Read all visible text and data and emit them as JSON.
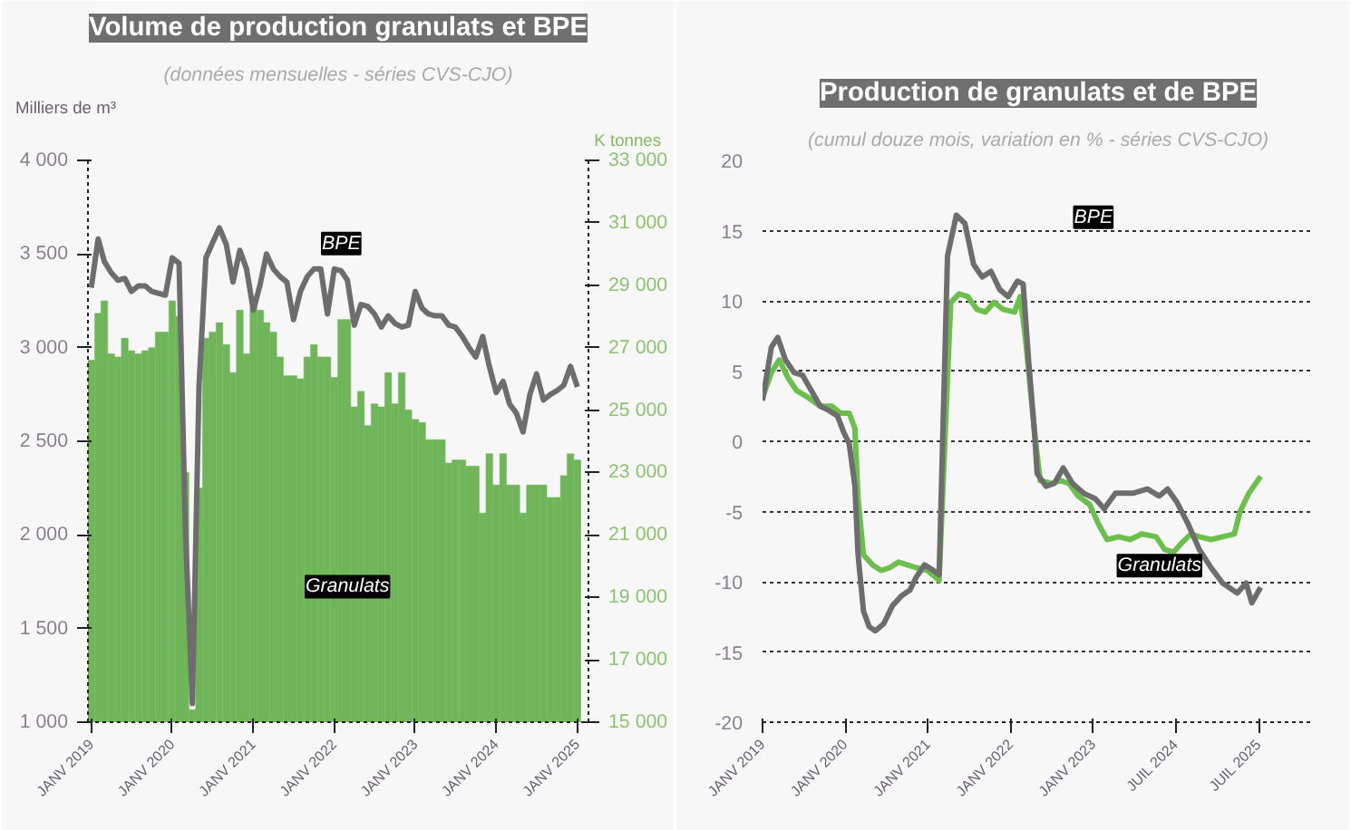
{
  "chart_data": [
    {
      "type": "bar",
      "title": "Volume de production granulats et BPE",
      "subtitle": "(données mensuelles - séries CVS-CJO)",
      "ylabel": "Milliers de m³",
      "y2label": "K tonnes",
      "x": [
        "2019-01",
        "2019-02",
        "2019-03",
        "2019-04",
        "2019-05",
        "2019-06",
        "2019-07",
        "2019-08",
        "2019-09",
        "2019-10",
        "2019-11",
        "2019-12",
        "2020-01",
        "2020-02",
        "2020-03",
        "2020-04",
        "2020-05",
        "2020-06",
        "2020-07",
        "2020-08",
        "2020-09",
        "2020-10",
        "2020-11",
        "2020-12",
        "2021-01",
        "2021-02",
        "2021-03",
        "2021-04",
        "2021-05",
        "2021-06",
        "2021-07",
        "2021-08",
        "2021-09",
        "2021-10",
        "2021-11",
        "2021-12",
        "2022-01",
        "2022-02",
        "2022-03",
        "2022-04",
        "2022-05",
        "2022-06",
        "2022-07",
        "2022-08",
        "2022-09",
        "2022-10",
        "2022-11",
        "2022-12",
        "2023-01",
        "2023-02",
        "2023-03",
        "2023-04",
        "2023-05",
        "2023-06",
        "2023-07",
        "2023-08",
        "2023-09",
        "2023-10",
        "2023-11",
        "2023-12",
        "2024-01",
        "2024-02",
        "2024-03",
        "2024-04",
        "2024-05",
        "2024-06",
        "2024-07",
        "2024-08",
        "2024-09",
        "2024-10",
        "2024-11",
        "2024-12",
        "2025-01"
      ],
      "xlim": [
        "2018-12-17",
        "2025-02-20"
      ],
      "xticks": [
        {
          "value": "2019-01",
          "label": "JANV 2019"
        },
        {
          "value": "2020-01",
          "label": "JANV 2020"
        },
        {
          "value": "2021-01",
          "label": "JANV 2021"
        },
        {
          "value": "2022-01",
          "label": "JANV 2022"
        },
        {
          "value": "2023-01",
          "label": "JANV 2023"
        },
        {
          "value": "2024-01",
          "label": "JANV 2024"
        },
        {
          "value": "2025-01",
          "label": "JANV 2025"
        }
      ],
      "ylim": [
        1000,
        4000
      ],
      "yticks": [
        {
          "value": 1000,
          "label": "1 000"
        },
        {
          "value": 1500,
          "label": "1 500"
        },
        {
          "value": 2000,
          "label": "2 000"
        },
        {
          "value": 2500,
          "label": "2 500"
        },
        {
          "value": 3000,
          "label": "3 000"
        },
        {
          "value": 3500,
          "label": "3 500"
        },
        {
          "value": 4000,
          "label": "4 000"
        }
      ],
      "y2lim": [
        15000,
        33000
      ],
      "y2ticks": [
        {
          "value": 15000,
          "label": "15 000"
        },
        {
          "value": 17000,
          "label": "17 000"
        },
        {
          "value": 19000,
          "label": "19 000"
        },
        {
          "value": 21000,
          "label": "21 000"
        },
        {
          "value": 23000,
          "label": "23 000"
        },
        {
          "value": 25000,
          "label": "25 000"
        },
        {
          "value": 27000,
          "label": "27 000"
        },
        {
          "value": 29000,
          "label": "29 000"
        },
        {
          "value": 31000,
          "label": "31 000"
        },
        {
          "value": 33000,
          "label": "33 000"
        }
      ],
      "grid": false,
      "series": [
        {
          "type": "bar",
          "axis": "y2",
          "color": "#70b55a",
          "values": [
            26600,
            28100,
            28500,
            26800,
            26700,
            27300,
            26900,
            26800,
            26900,
            27000,
            27500,
            27500,
            28500,
            28000,
            23000,
            15400,
            22500,
            27300,
            27500,
            27800,
            27100,
            26200,
            28200,
            26800,
            28300,
            28200,
            27800,
            27500,
            26700,
            26100,
            26100,
            26000,
            26700,
            27100,
            26700,
            26700,
            26050,
            27900,
            27900,
            25100,
            25600,
            24500,
            25200,
            25100,
            26200,
            25200,
            26200,
            25000,
            24700,
            24600,
            24050,
            24050,
            24050,
            23300,
            23400,
            23400,
            23200,
            23200,
            21700,
            23600,
            22600,
            23600,
            22600,
            22600,
            21700,
            22600,
            22600,
            22600,
            22200,
            22200,
            22900,
            23600,
            23400
          ]
        },
        {
          "type": "line",
          "axis": "y",
          "color": "#6d6d6d",
          "values": [
            3320,
            3580,
            3460,
            3400,
            3360,
            3370,
            3300,
            3330,
            3330,
            3300,
            3290,
            3280,
            3480,
            3450,
            2000,
            1100,
            2800,
            3480,
            3560,
            3640,
            3550,
            3350,
            3520,
            3420,
            3200,
            3340,
            3500,
            3420,
            3380,
            3350,
            3150,
            3300,
            3380,
            3420,
            3420,
            3180,
            3420,
            3410,
            3360,
            3120,
            3230,
            3220,
            3180,
            3110,
            3170,
            3130,
            3110,
            3120,
            3300,
            3210,
            3180,
            3170,
            3170,
            3120,
            3110,
            3060,
            3000,
            2950,
            3060,
            2900,
            2760,
            2820,
            2700,
            2650,
            2550,
            2750,
            2860,
            2720,
            2750,
            2770,
            2800,
            2900,
            2790
          ]
        }
      ],
      "annotations": [
        {
          "text": "BPE",
          "x": "2022-02",
          "y": 3440
        },
        {
          "text": "Granulats",
          "x": "2022-03",
          "y": 1840
        }
      ]
    },
    {
      "type": "line",
      "title": "Production de granulats et de BPE",
      "subtitle": "(cumul douze mois, variation en % - séries CVS-CJO)",
      "xlim": [
        "2019-01-01",
        "2025-09-01"
      ],
      "xticks": [
        {
          "value": "2019-01",
          "label": "JANV 2019"
        },
        {
          "value": "2020-01",
          "label": "JANV 2020"
        },
        {
          "value": "2021-01",
          "label": "JANV 2021"
        },
        {
          "value": "2022-01",
          "label": "JANV 2022"
        },
        {
          "value": "2023-01",
          "label": "JANV 2023"
        },
        {
          "value": "2024-01",
          "label": "JUIL 2024"
        },
        {
          "value": "2025-01",
          "label": "JUIL 2025"
        }
      ],
      "ylim": [
        -20,
        20
      ],
      "yticks": [
        -20,
        -15,
        -10,
        -5,
        0,
        5,
        10,
        15,
        20
      ],
      "grid": "y",
      "series": [
        {
          "color": "#6cbf4c",
          "x": [
            "2019-01-01",
            "2019-02-09",
            "2019-03-16",
            "2019-04-24",
            "2019-06-01",
            "2019-07-23",
            "2019-09-13",
            "2019-11-03",
            "2019-12-12",
            "2020-01-19",
            "2020-02-13",
            "2020-02-27",
            "2020-03-22",
            "2020-05-01",
            "2020-06-08",
            "2020-07-16",
            "2020-08-24",
            "2020-10-01",
            "2020-11-09",
            "2020-12-30",
            "2021-02-19",
            "2021-04-11",
            "2021-05-19",
            "2021-06-26",
            "2021-08-04",
            "2021-09-11",
            "2021-10-20",
            "2021-11-27",
            "2022-01-18",
            "2022-02-12",
            "2022-03-08",
            "2022-04-15",
            "2022-05-11",
            "2022-07-01",
            "2022-08-08",
            "2022-09-16",
            "2022-10-26",
            "2022-12-16",
            "2023-01-24",
            "2023-03-03",
            "2023-04-23",
            "2023-06-13",
            "2023-08-03",
            "2023-10-05",
            "2023-11-12",
            "2023-12-21",
            "2024-01-29",
            "2024-03-07",
            "2024-04-13",
            "2024-06-04",
            "2024-07-25",
            "2024-09-15",
            "2024-10-10",
            "2024-11-18",
            "2025-01-09"
          ],
          "values": [
            3.1,
            4.9,
            5.8,
            4.5,
            3.6,
            3.1,
            2.5,
            2.5,
            2.0,
            2.0,
            0.9,
            -4.1,
            -8.1,
            -8.8,
            -9.2,
            -9.0,
            -8.6,
            -8.8,
            -9.0,
            -9.2,
            -9.9,
            9.9,
            10.5,
            10.3,
            9.4,
            9.2,
            9.9,
            9.4,
            9.2,
            10.3,
            7.2,
            0.9,
            -2.8,
            -3.0,
            -2.8,
            -3.0,
            -3.9,
            -4.5,
            -5.9,
            -7.0,
            -6.8,
            -7.0,
            -6.6,
            -6.8,
            -7.7,
            -7.9,
            -7.2,
            -6.6,
            -6.8,
            -7.0,
            -6.8,
            -6.6,
            -5.0,
            -3.7,
            -2.5
          ]
        },
        {
          "color": "#6d6d6d",
          "x": [
            "2019-01-01",
            "2019-02-09",
            "2019-03-09",
            "2019-04-12",
            "2019-05-20",
            "2019-06-27",
            "2019-08-05",
            "2019-09-13",
            "2019-10-21",
            "2019-11-28",
            "2019-12-24",
            "2020-01-19",
            "2020-02-13",
            "2020-02-27",
            "2020-03-22",
            "2020-04-16",
            "2020-05-13",
            "2020-06-19",
            "2020-07-28",
            "2020-09-06",
            "2020-10-13",
            "2020-11-09",
            "2020-12-16",
            "2021-01-25",
            "2021-02-19",
            "2021-03-28",
            "2021-05-06",
            "2021-06-13",
            "2021-07-21",
            "2021-08-28",
            "2021-10-06",
            "2021-11-14",
            "2021-12-21",
            "2022-01-31",
            "2022-02-25",
            "2022-03-21",
            "2022-04-15",
            "2022-04-28",
            "2022-06-06",
            "2022-07-13",
            "2022-08-21",
            "2022-10-01",
            "2022-11-19",
            "2023-01-10",
            "2023-02-18",
            "2023-04-09",
            "2023-06-25",
            "2023-08-28",
            "2023-10-19",
            "2023-11-25",
            "2024-01-04",
            "2024-02-24",
            "2024-04-13",
            "2024-06-04",
            "2024-07-25",
            "2024-09-28",
            "2024-11-06",
            "2024-12-01",
            "2025-01-09"
          ],
          "values": [
            2.9,
            6.7,
            7.4,
            5.8,
            4.9,
            4.7,
            3.6,
            2.5,
            2.2,
            1.8,
            0.7,
            -0.2,
            -3.2,
            -8.1,
            -12.1,
            -13.2,
            -13.5,
            -13.0,
            -11.7,
            -11.0,
            -10.6,
            -9.7,
            -8.8,
            -9.2,
            -9.5,
            13.2,
            16.1,
            15.5,
            12.6,
            11.7,
            12.1,
            10.8,
            10.3,
            11.4,
            11.2,
            5.8,
            0.9,
            -2.3,
            -3.2,
            -3.0,
            -1.9,
            -3.0,
            -3.7,
            -4.1,
            -4.8,
            -3.7,
            -3.7,
            -3.4,
            -3.9,
            -3.4,
            -4.3,
            -5.9,
            -7.7,
            -9.0,
            -10.1,
            -10.8,
            -10.1,
            -11.5,
            -10.4
          ]
        }
      ],
      "annotations": [
        "BPE",
        "Granulats"
      ]
    }
  ]
}
